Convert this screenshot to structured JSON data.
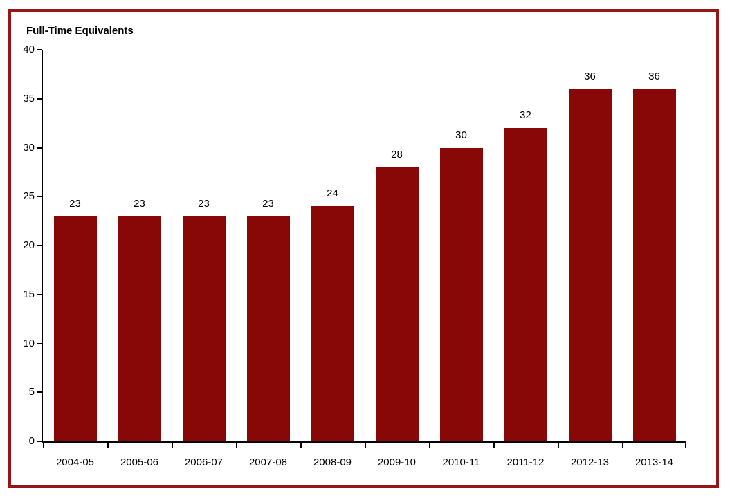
{
  "chart_data": {
    "type": "bar",
    "title": "Full-Time Equivalents",
    "categories": [
      "2004-05",
      "2005-06",
      "2006-07",
      "2007-08",
      "2008-09",
      "2009-10",
      "2010-11",
      "2011-12",
      "2012-13",
      "2013-14"
    ],
    "values": [
      23,
      23,
      23,
      23,
      24,
      28,
      30,
      32,
      36,
      36
    ],
    "xlabel": "",
    "ylabel": "",
    "ylim": [
      0,
      40
    ],
    "yticks": [
      0,
      5,
      10,
      15,
      20,
      25,
      30,
      35,
      40
    ],
    "grid": "off",
    "legend_position": "none",
    "value_labels_shown": true,
    "colors": {
      "bar_fill": "#880808",
      "frame_border": "#961616",
      "axis": "#000000",
      "text": "#000000",
      "background": "#ffffff"
    }
  }
}
